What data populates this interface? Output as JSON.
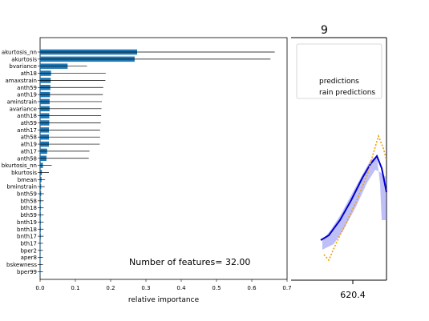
{
  "chart_data": {
    "type": "bar",
    "orientation": "horizontal",
    "xlabel": "relative importance",
    "xlim": [
      0,
      0.7
    ],
    "xticks": [
      "0.0",
      "0.1",
      "0.2",
      "0.3",
      "0.4",
      "0.5",
      "0.6",
      "0.7"
    ],
    "annotation": "Number of features= 32.00",
    "bar_color": "#1f77b4",
    "categories": [
      "akurtosis_nn",
      "akurtosis",
      "bvariance",
      "ath18",
      "amaxstrain",
      "anth59",
      "anth19",
      "aminstrain",
      "avariance",
      "anth18",
      "ath59",
      "anth17",
      "ath58",
      "ath19",
      "ath17",
      "anth58",
      "bkurtosis_nn",
      "bkurtosis",
      "bmean",
      "bminstrain",
      "bnth59",
      "bth58",
      "bth18",
      "bth59",
      "bnth19",
      "bnth18",
      "bnth17",
      "bth17",
      "bper2",
      "aper8",
      "bskewness",
      "bper99"
    ],
    "values": [
      0.275,
      0.268,
      0.078,
      0.031,
      0.03,
      0.029,
      0.028,
      0.027,
      0.027,
      0.026,
      0.026,
      0.025,
      0.025,
      0.025,
      0.02,
      0.018,
      0.008,
      0.005,
      0.004,
      0.003,
      0.003,
      0.002,
      0.002,
      0.002,
      0.002,
      0.002,
      0.002,
      0.001,
      0.001,
      0.001,
      0.001,
      0.001
    ],
    "errors": [
      0.39,
      0.385,
      0.055,
      0.155,
      0.155,
      0.15,
      0.15,
      0.148,
      0.147,
      0.147,
      0.146,
      0.145,
      0.145,
      0.144,
      0.12,
      0.12,
      0.025,
      0.02,
      0.01,
      0.01,
      0.008,
      0.008,
      0.008,
      0.008,
      0.008,
      0.008,
      0.008,
      0.007,
      0.007,
      0.007,
      0.007,
      0.007
    ]
  },
  "background_window": {
    "title_fragment": "9",
    "legend": [
      "predictions",
      "rain predictions"
    ],
    "x_tick": "620.4"
  }
}
